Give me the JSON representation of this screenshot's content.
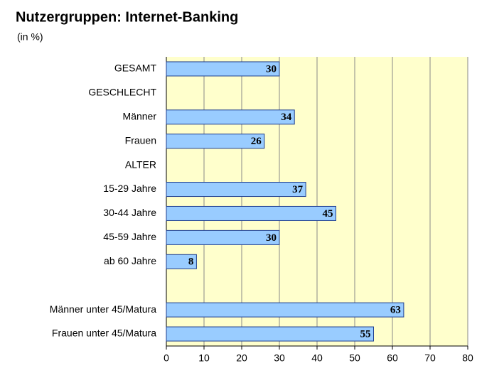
{
  "chart_data": {
    "type": "bar",
    "orientation": "horizontal",
    "title": "Nutzergruppen: Internet-Banking",
    "subtitle": "(in %)",
    "categories": [
      "GESAMT",
      "GESCHLECHT",
      "Männer",
      "Frauen",
      "ALTER",
      "15-29 Jahre",
      "30-44 Jahre",
      "45-59 Jahre",
      "ab 60 Jahre",
      null,
      "Männer unter 45/Matura",
      "Frauen unter 45/Matura"
    ],
    "values": [
      30,
      null,
      34,
      26,
      null,
      37,
      45,
      30,
      8,
      null,
      63,
      55
    ],
    "color": "#99ccff",
    "xlim": [
      0,
      80
    ],
    "xticks": [
      0,
      10,
      20,
      30,
      40,
      50,
      60,
      70,
      80
    ],
    "grid": true
  }
}
